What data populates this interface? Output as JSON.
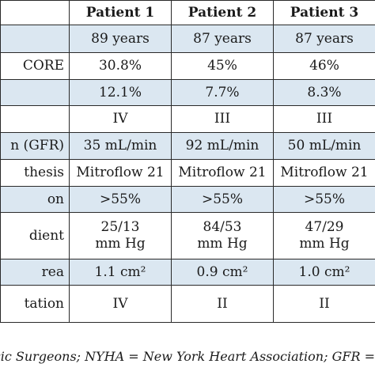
{
  "table": {
    "headers": [
      "",
      "Patient 1",
      "Patient 2",
      "Patient 3"
    ],
    "rows": [
      {
        "label": "",
        "values": [
          "89 years",
          "87 years",
          "87 years"
        ]
      },
      {
        "label": "CORE",
        "values": [
          "30.8%",
          "45%",
          "46%"
        ]
      },
      {
        "label": "",
        "values": [
          "12.1%",
          "7.7%",
          "8.3%"
        ]
      },
      {
        "label": "",
        "values": [
          "IV",
          "III",
          "III"
        ]
      },
      {
        "label": "n (GFR)",
        "values": [
          "35 mL/min",
          "92 mL/min",
          "50 mL/min"
        ]
      },
      {
        "label": "thesis",
        "values": [
          "Mitroflow 21",
          "Mitroflow 21",
          "Mitroflow 21"
        ]
      },
      {
        "label": "on",
        "values": [
          ">55%",
          ">55%",
          ">55%"
        ]
      },
      {
        "label": "dient",
        "values": [
          "25/13",
          "84/53",
          "47/29"
        ],
        "values_line2": [
          "mm Hg",
          "mm Hg",
          "mm Hg"
        ]
      },
      {
        "label": "rea",
        "values": [
          "1.1 cm²",
          "0.9 cm²",
          "1.0 cm²"
        ]
      },
      {
        "label": "tation",
        "values": [
          "IV",
          "II",
          "II"
        ]
      }
    ]
  },
  "footnote": "f Thoracic Surgeons; NYHA = New York Heart Association; GFR ="
}
